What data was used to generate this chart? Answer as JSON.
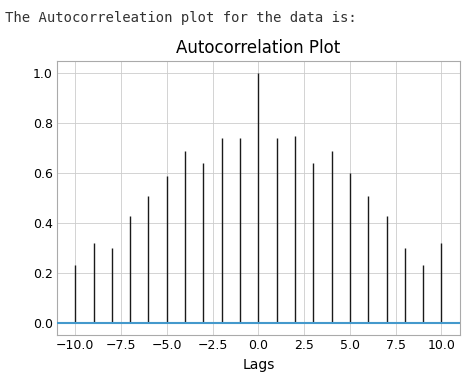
{
  "title": "Autocorrelation Plot",
  "xlabel": "Lags",
  "xlim": [
    -11,
    11
  ],
  "ylim": [
    -0.05,
    1.05
  ],
  "lags": [
    -10,
    -9,
    -8,
    -7,
    -6,
    -5,
    -4,
    -3,
    -2,
    -1,
    0,
    1,
    2,
    3,
    4,
    5,
    6,
    7,
    8,
    9,
    10
  ],
  "acf_values": [
    0.23,
    0.32,
    0.3,
    0.43,
    0.51,
    0.59,
    0.69,
    0.64,
    0.74,
    0.74,
    1.0,
    0.74,
    0.75,
    0.64,
    0.69,
    0.6,
    0.51,
    0.43,
    0.3,
    0.23,
    0.32
  ],
  "bar_color": "#1a1a1a",
  "hline_color": "#4499cc",
  "hline_y": 0.0,
  "grid_color": "#cccccc",
  "xticks": [
    -10.0,
    -7.5,
    -5.0,
    -2.5,
    0.0,
    2.5,
    5.0,
    7.5,
    10.0
  ],
  "yticks": [
    0.0,
    0.2,
    0.4,
    0.6,
    0.8,
    1.0
  ],
  "title_fontsize": 12,
  "label_fontsize": 10,
  "tick_fontsize": 9,
  "suptitle": "The Autocorreleation plot for the data is:",
  "suptitle_fontsize": 10
}
